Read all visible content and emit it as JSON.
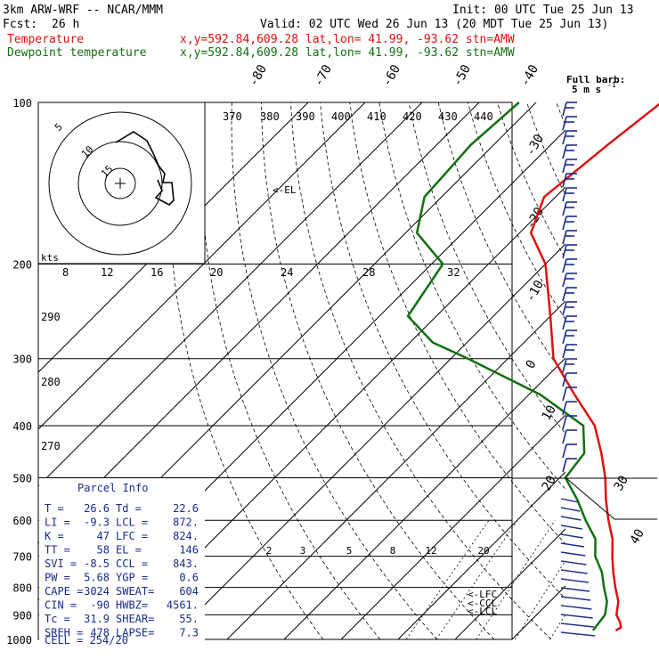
{
  "header": {
    "model": "3km ARW-WRF -- NCAR/MMM",
    "init": "Init: 00 UTC Tue 25 Jun 13",
    "fcst_label": "Fcst:",
    "fcst_value": "26 h",
    "valid": "Valid: 02 UTC Wed 26 Jun 13 (20 MDT Tue 25 Jun 13)",
    "temp_label": "Temperature",
    "dew_label": "Dewpoint temperature",
    "loc_line": "x,y=592.84,609.28   lat,lon= 41.99, -93.62  stn=AMW"
  },
  "colors": {
    "temperature": "#e01010",
    "dewpoint": "#107010",
    "parcel_text": "#1a2c8c"
  },
  "barb_key": {
    "title": "Full barb:",
    "value": "5 m s",
    "exp": "-1"
  },
  "hodograph": {
    "ring_labels": [
      "5",
      "10",
      "15"
    ],
    "units": "kts",
    "theta_labels": [
      "370",
      "380",
      "390",
      "400",
      "410",
      "420",
      "430",
      "440"
    ]
  },
  "chart_data": {
    "type": "line",
    "title": "",
    "pressure_levels": [
      100,
      200,
      300,
      400,
      500,
      600,
      700,
      800,
      900,
      1000
    ],
    "skewt_isotherm_labels": [
      "-80",
      "-70",
      "-60",
      "-50",
      "-40",
      "-30",
      "-20",
      "-10",
      "0",
      "10",
      "20",
      "30",
      "40"
    ],
    "mixing_ratio_labels": [
      "2",
      "3",
      "5",
      "8",
      "12",
      "20"
    ],
    "theta_e_labels": [
      "8",
      "12",
      "16",
      "20",
      "24",
      "28",
      "32"
    ],
    "theta_labels_left": [
      "290",
      "280",
      "270"
    ],
    "el_label": "<-EL",
    "lfc_label": "<-LFC",
    "lcl_label": "<-LCL",
    "ccl_label": "<-CCL",
    "series": [
      {
        "name": "Temperature",
        "points": [
          [
            100,
            -58
          ],
          [
            120,
            -60
          ],
          [
            150,
            -62
          ],
          [
            175,
            -58
          ],
          [
            200,
            -50
          ],
          [
            250,
            -40
          ],
          [
            300,
            -32
          ],
          [
            350,
            -22
          ],
          [
            400,
            -13
          ],
          [
            450,
            -7
          ],
          [
            500,
            -2
          ],
          [
            550,
            2
          ],
          [
            600,
            6
          ],
          [
            650,
            10
          ],
          [
            700,
            13
          ],
          [
            750,
            16
          ],
          [
            800,
            19
          ],
          [
            850,
            22
          ],
          [
            900,
            24
          ],
          [
            930,
            26
          ],
          [
            950,
            27
          ],
          [
            962,
            26.6
          ]
        ]
      },
      {
        "name": "Dewpoint temperature",
        "points": [
          [
            100,
            -83
          ],
          [
            120,
            -84
          ],
          [
            150,
            -83
          ],
          [
            175,
            -78
          ],
          [
            200,
            -68
          ],
          [
            250,
            -65
          ],
          [
            280,
            -56
          ],
          [
            300,
            -47
          ],
          [
            350,
            -28
          ],
          [
            400,
            -15
          ],
          [
            450,
            -10
          ],
          [
            500,
            -9
          ],
          [
            550,
            -3
          ],
          [
            600,
            2
          ],
          [
            650,
            7
          ],
          [
            700,
            10
          ],
          [
            750,
            14
          ],
          [
            800,
            17
          ],
          [
            850,
            20
          ],
          [
            900,
            22
          ],
          [
            950,
            22.5
          ],
          [
            962,
            22.6
          ]
        ]
      }
    ]
  },
  "parcel_info": {
    "title": "Parcel Info",
    "rows": [
      [
        "T   =",
        "26.6",
        "Td  =",
        "22.6"
      ],
      [
        "LI  =",
        "-9.3",
        "LCL =",
        "872."
      ],
      [
        "K   =",
        "47",
        "LFC =",
        "824."
      ],
      [
        "TT  =",
        "58",
        "EL  =",
        "146"
      ],
      [
        "SVI =",
        "-8.5",
        "CCL =",
        "843."
      ],
      [
        "PW  =",
        "5.68",
        "YGP =",
        "0.6"
      ],
      [
        "CAPE =",
        "3024",
        "SWEAT=",
        "604"
      ],
      [
        "CIN  =",
        "-90",
        "HWBZ=",
        "4561."
      ],
      [
        "Tc  =",
        "31.9",
        "SHEAR=",
        "55."
      ],
      [
        "SREH =",
        "478",
        "LAPSE=",
        "7.3"
      ]
    ],
    "cell": "CELL = 254/20"
  }
}
